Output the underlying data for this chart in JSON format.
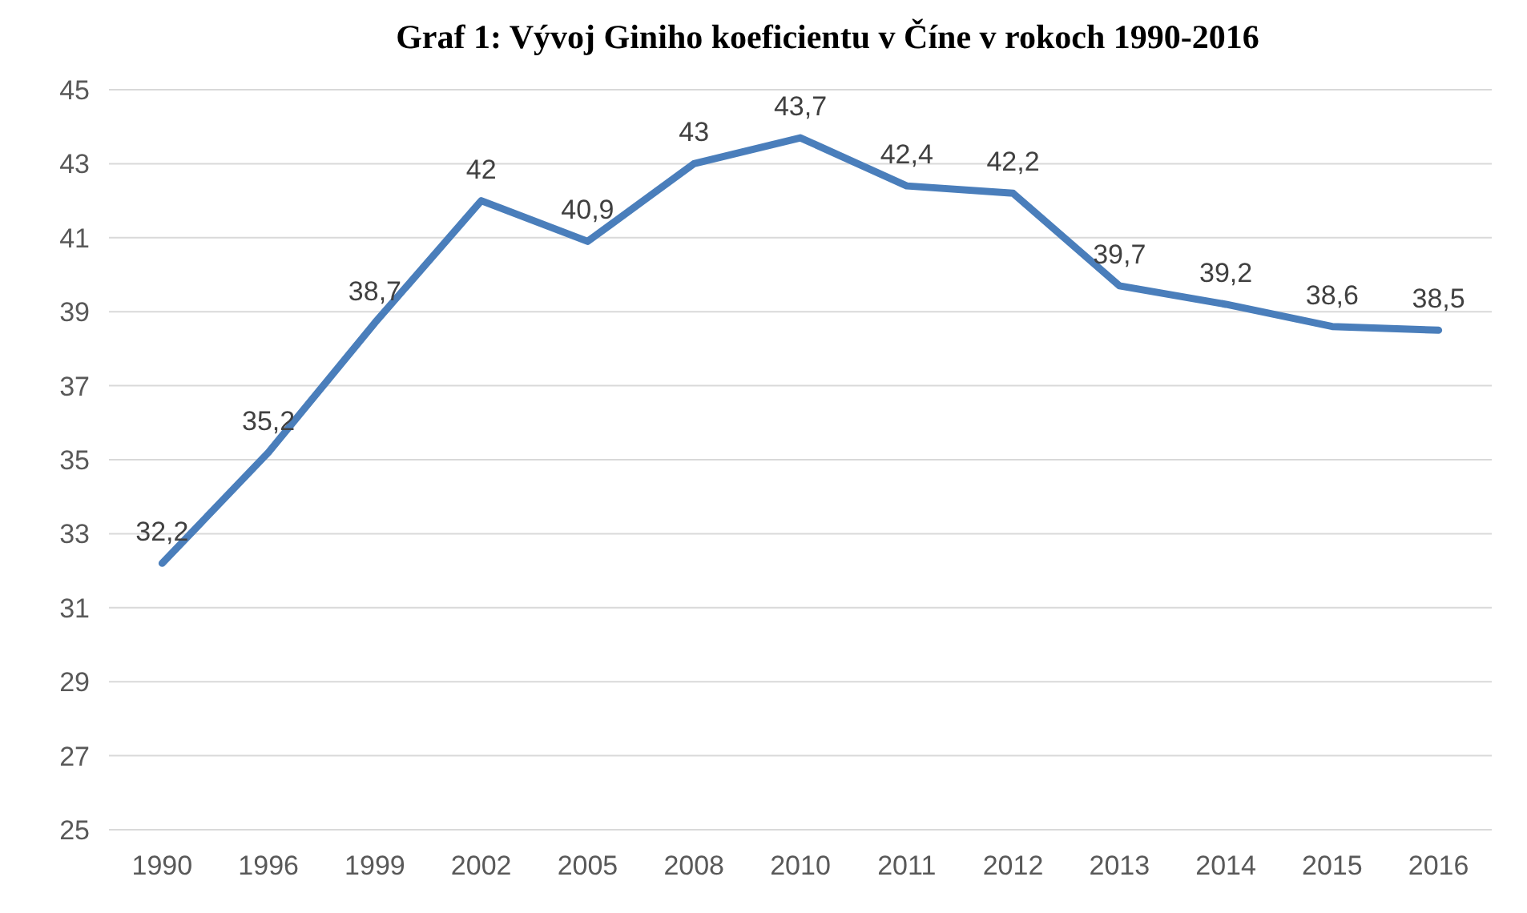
{
  "chart_data": {
    "type": "line",
    "title": "Graf 1: Vývoj Giniho koeficientu v Číne v rokoch 1990-2016",
    "categories": [
      "1990",
      "1996",
      "1999",
      "2002",
      "2005",
      "2008",
      "2010",
      "2011",
      "2012",
      "2013",
      "2014",
      "2015",
      "2016"
    ],
    "series": [
      {
        "color": "#4a7ebb",
        "values": [
          32.2,
          35.2,
          38.7,
          42,
          40.9,
          43,
          43.7,
          42.4,
          42.2,
          39.7,
          39.2,
          38.6,
          38.5
        ],
        "value_labels": [
          "32,2",
          "35,2",
          "38,7",
          "42",
          "40,9",
          "43",
          "43,7",
          "42,4",
          "42,2",
          "39,7",
          "39,2",
          "38,6",
          "38,5"
        ]
      }
    ],
    "ylim": [
      25,
      45
    ],
    "yticks": [
      25,
      27,
      29,
      31,
      33,
      35,
      37,
      39,
      41,
      43,
      45
    ],
    "grid": "y",
    "marker": "none",
    "line_style": "solid"
  }
}
